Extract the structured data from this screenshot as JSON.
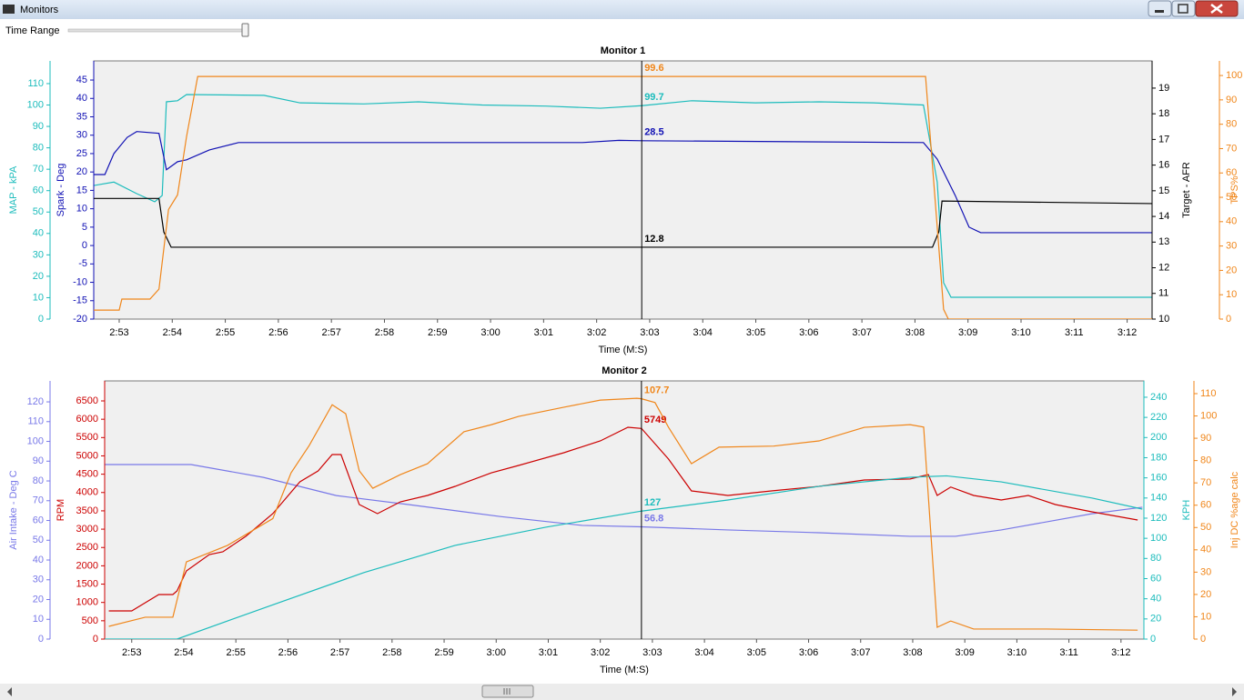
{
  "window": {
    "title": "Monitors",
    "time_range_label": "Time Range"
  },
  "chart_data": [
    {
      "type": "line",
      "title": "Monitor 1",
      "xlabel": "Time (M:S)",
      "xlim": [
        172.52,
        192.47
      ],
      "cursor": 182.85,
      "xticks": [
        {
          "value": 173,
          "label": "2:53"
        },
        {
          "value": 174,
          "label": "2:54"
        },
        {
          "value": 175,
          "label": "2:55"
        },
        {
          "value": 176,
          "label": "2:56"
        },
        {
          "value": 177,
          "label": "2:57"
        },
        {
          "value": 178,
          "label": "2:58"
        },
        {
          "value": 179,
          "label": "2:59"
        },
        {
          "value": 180,
          "label": "3:00"
        },
        {
          "value": 181,
          "label": "3:01"
        },
        {
          "value": 182,
          "label": "3:02"
        },
        {
          "value": 183,
          "label": "3:03"
        },
        {
          "value": 184,
          "label": "3:04"
        },
        {
          "value": 185,
          "label": "3:05"
        },
        {
          "value": 186,
          "label": "3:06"
        },
        {
          "value": 187,
          "label": "3:07"
        },
        {
          "value": 188,
          "label": "3:08"
        },
        {
          "value": 189,
          "label": "3:09"
        },
        {
          "value": 190,
          "label": "3:10"
        },
        {
          "value": 191,
          "label": "3:11"
        },
        {
          "value": 192,
          "label": "3:12"
        }
      ],
      "series": [
        {
          "name": "MAP - kPA",
          "color": "#1cbcbc",
          "ylim": [
            0,
            120.6
          ],
          "yticks": [
            0,
            10,
            20,
            30,
            40,
            50,
            60,
            70,
            80,
            90,
            100,
            110
          ],
          "cursor_value": 99.7,
          "x": [
            172.52,
            172.9,
            173.33,
            173.67,
            173.81,
            173.89,
            174.1,
            174.27,
            175.73,
            176.41,
            177.61,
            178.64,
            179.84,
            181.04,
            182.07,
            182.85,
            183.79,
            184.99,
            186.19,
            187.22,
            188.16,
            188.42,
            188.54,
            188.68,
            192.47
          ],
          "values": [
            62.4,
            64,
            58.6,
            54.8,
            57.7,
            101.5,
            102,
            104.9,
            104.5,
            101,
            100.5,
            101.5,
            100,
            99.5,
            98.5,
            99.7,
            102,
            101,
            101.5,
            101,
            100,
            64,
            17,
            10.2,
            10.2
          ]
        },
        {
          "name": "Spark - Deg",
          "color": "#1010b4",
          "ylim": [
            -20,
            50.2
          ],
          "yticks": [
            -20,
            -15,
            -10,
            -5,
            0,
            5,
            10,
            15,
            20,
            25,
            30,
            35,
            40,
            45
          ],
          "cursor_value": 28.5,
          "x": [
            172.52,
            172.73,
            172.9,
            173.15,
            173.33,
            173.75,
            173.89,
            174.1,
            174.27,
            174.7,
            175.25,
            181.73,
            182.42,
            182.85,
            188.16,
            188.42,
            188.76,
            189.02,
            189.24,
            192.47
          ],
          "values": [
            19.3,
            19.3,
            25,
            29.4,
            31,
            30.5,
            20.6,
            22.8,
            23.3,
            26,
            28,
            28,
            28.6,
            28.5,
            28,
            23.5,
            13.6,
            5,
            3.5,
            3.5
          ]
        },
        {
          "name": "Target - AFR",
          "color": "#000000",
          "ylim": [
            10,
            20.06
          ],
          "yticks": [
            10,
            11,
            12,
            13,
            14,
            15,
            16,
            17,
            18,
            19
          ],
          "cursor_value": 12.8,
          "x": [
            172.52,
            173.75,
            173.84,
            173.98,
            188.33,
            188.45,
            188.51,
            192.47
          ],
          "values": [
            14.7,
            14.7,
            13.4,
            12.8,
            12.8,
            13.4,
            14.6,
            14.5
          ]
        },
        {
          "name": "TPS%",
          "color": "#f0861a",
          "ylim": [
            0,
            106
          ],
          "yticks": [
            0,
            10,
            20,
            30,
            40,
            50,
            60,
            70,
            80,
            90,
            100
          ],
          "cursor_value": 99.6,
          "x": [
            172.52,
            173.0,
            173.05,
            173.58,
            173.75,
            173.93,
            174.1,
            174.27,
            174.48,
            182.85,
            188.2,
            188.54,
            188.63,
            192.47
          ],
          "values": [
            3.7,
            3.7,
            8.2,
            8.2,
            12.3,
            45,
            51,
            75,
            99.6,
            99.6,
            99.6,
            4,
            0,
            0
          ]
        }
      ]
    },
    {
      "type": "line",
      "title": "Monitor 2",
      "xlabel": "Time (M:S)",
      "xlim": [
        172.48,
        192.44
      ],
      "cursor": 182.79,
      "xticks": [
        {
          "value": 173,
          "label": "2:53"
        },
        {
          "value": 174,
          "label": "2:54"
        },
        {
          "value": 175,
          "label": "2:55"
        },
        {
          "value": 176,
          "label": "2:56"
        },
        {
          "value": 177,
          "label": "2:57"
        },
        {
          "value": 178,
          "label": "2:58"
        },
        {
          "value": 179,
          "label": "2:59"
        },
        {
          "value": 180,
          "label": "3:00"
        },
        {
          "value": 181,
          "label": "3:01"
        },
        {
          "value": 182,
          "label": "3:02"
        },
        {
          "value": 183,
          "label": "3:03"
        },
        {
          "value": 184,
          "label": "3:04"
        },
        {
          "value": 185,
          "label": "3:05"
        },
        {
          "value": 186,
          "label": "3:06"
        },
        {
          "value": 187,
          "label": "3:07"
        },
        {
          "value": 188,
          "label": "3:08"
        },
        {
          "value": 189,
          "label": "3:09"
        },
        {
          "value": 190,
          "label": "3:10"
        },
        {
          "value": 191,
          "label": "3:11"
        },
        {
          "value": 192,
          "label": "3:12"
        }
      ],
      "series": [
        {
          "name": "Air Intake - Deg C",
          "color": "#7878e8",
          "ylim": [
            0,
            130.6
          ],
          "yticks": [
            0,
            10,
            20,
            30,
            40,
            50,
            60,
            70,
            80,
            90,
            100,
            110,
            120
          ],
          "cursor_value": 56.8,
          "x": [
            172.48,
            174.14,
            175.53,
            176.93,
            178.33,
            180.08,
            181.65,
            182.79,
            184.45,
            186.2,
            187.95,
            188.82,
            189.7,
            191.44,
            192.41
          ],
          "values": [
            88.3,
            88.3,
            81.8,
            72.6,
            68,
            62,
            57.5,
            56.8,
            55.2,
            53.8,
            52,
            52,
            55.2,
            63.4,
            66.7
          ]
        },
        {
          "name": "RPM",
          "color": "#cc0000",
          "ylim": [
            0,
            7046
          ],
          "yticks": [
            0,
            500,
            1000,
            1500,
            2000,
            2500,
            3000,
            3500,
            4000,
            4500,
            5000,
            5500,
            6000,
            6500
          ],
          "cursor_value": 5749,
          "x": [
            172.56,
            173.0,
            173.26,
            173.52,
            173.79,
            173.87,
            174.05,
            174.49,
            174.75,
            175.19,
            175.71,
            176.23,
            176.58,
            176.85,
            177.02,
            177.37,
            177.72,
            178.16,
            178.68,
            179.21,
            179.91,
            180.43,
            181.3,
            182.0,
            182.53,
            182.79,
            183.31,
            183.75,
            184.45,
            185.33,
            186.2,
            187.07,
            187.95,
            188.3,
            188.47,
            188.73,
            189.17,
            189.7,
            190.22,
            190.74,
            191.44,
            192.32
          ],
          "values": [
            769,
            769,
            992,
            1216,
            1216,
            1315,
            1861,
            2307,
            2382,
            2804,
            3424,
            4292,
            4590,
            5036,
            5036,
            3672,
            3424,
            3746,
            3920,
            4168,
            4540,
            4739,
            5086,
            5409,
            5781,
            5749,
            4912,
            4044,
            3920,
            4050,
            4168,
            4342,
            4370,
            4490,
            3920,
            4150,
            3920,
            3796,
            3920,
            3672,
            3473,
            3250
          ]
        },
        {
          "name": "KPH",
          "color": "#1cbcbc",
          "ylim": [
            0,
            256.2
          ],
          "yticks": [
            0,
            20,
            40,
            60,
            80,
            100,
            120,
            140,
            160,
            180,
            200,
            220,
            240
          ],
          "cursor_value": 127,
          "x": [
            172.48,
            173.87,
            174.84,
            175.71,
            177.46,
            179.21,
            180.95,
            182.79,
            184.45,
            186.2,
            187.95,
            188.65,
            189.7,
            191.44,
            192.41
          ],
          "values": [
            0,
            0,
            18,
            34,
            66,
            93,
            111,
            127,
            138,
            151.6,
            160.6,
            162,
            156,
            140,
            129
          ]
        },
        {
          "name": "Inj DC %age calc",
          "color": "#f0861a",
          "ylim": [
            0,
            115.7
          ],
          "yticks": [
            0,
            10,
            20,
            30,
            40,
            50,
            60,
            70,
            80,
            90,
            100,
            110
          ],
          "cursor_value": 107.7,
          "x": [
            172.56,
            173.26,
            173.79,
            174.05,
            174.84,
            175.71,
            176.06,
            176.41,
            176.85,
            177.11,
            177.37,
            177.63,
            178.16,
            178.68,
            179.38,
            179.91,
            180.43,
            181.3,
            182.0,
            182.7,
            182.79,
            183.05,
            183.31,
            183.75,
            184.28,
            185.33,
            186.2,
            187.07,
            187.95,
            188.21,
            188.47,
            188.73,
            189.17,
            190.57,
            192.32
          ],
          "values": [
            5.7,
            9.8,
            9.8,
            34.6,
            42,
            54,
            74.5,
            86.8,
            105,
            101,
            75.4,
            67.6,
            73.7,
            78.6,
            92.9,
            96.1,
            99.8,
            103.9,
            107.1,
            107.9,
            107.7,
            106,
            94.9,
            78.6,
            86,
            86.5,
            88.8,
            94.9,
            96.1,
            95,
            5.3,
            8.1,
            4.5,
            4.5,
            4
          ]
        }
      ]
    }
  ]
}
